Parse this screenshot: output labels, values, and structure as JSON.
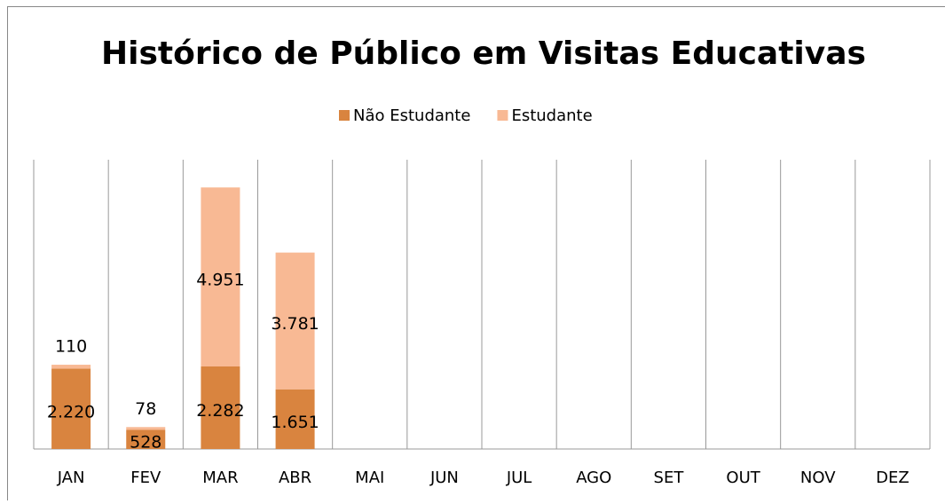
{
  "chart_data": {
    "type": "stacked-bar",
    "title": "Histórico de Público em Visitas Educativas",
    "categories": [
      "JAN",
      "FEV",
      "MAR",
      "ABR",
      "MAI",
      "JUN",
      "JUL",
      "AGO",
      "SET",
      "OUT",
      "NOV",
      "DEZ"
    ],
    "series": [
      {
        "name": "Não Estudante",
        "color": "#d9843f",
        "values": [
          2220,
          528,
          2282,
          1651,
          null,
          null,
          null,
          null,
          null,
          null,
          null,
          null
        ],
        "value_labels": [
          "2.220",
          "528",
          "2.282",
          "1.651",
          null,
          null,
          null,
          null,
          null,
          null,
          null,
          null
        ]
      },
      {
        "name": "Estudante",
        "color": "#f8b994",
        "values": [
          110,
          78,
          4951,
          3781,
          null,
          null,
          null,
          null,
          null,
          null,
          null,
          null
        ],
        "value_labels": [
          "110",
          "78",
          "4.951",
          "3.781",
          null,
          null,
          null,
          null,
          null,
          null,
          null,
          null
        ]
      }
    ],
    "ylim": [
      0,
      8000
    ],
    "grid": true,
    "legend": "top"
  }
}
